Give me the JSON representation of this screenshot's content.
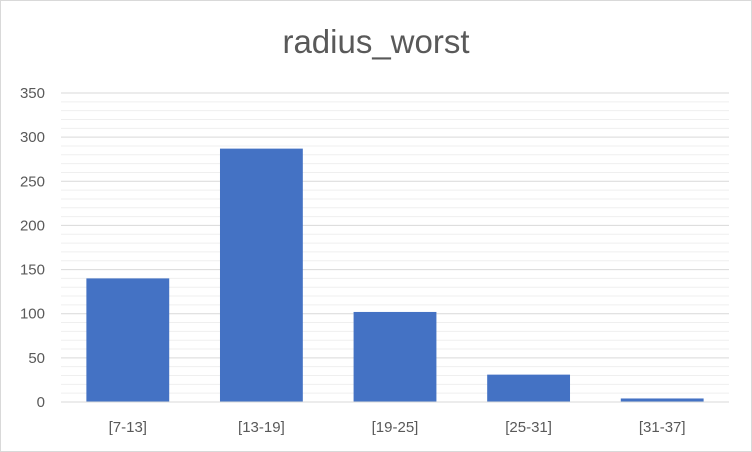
{
  "chart_data": {
    "type": "bar",
    "title": "radius_worst",
    "xlabel": "",
    "ylabel": "",
    "categories": [
      "[7-13]",
      "[13-19]",
      "[19-25]",
      "[25-31]",
      "[31-37]"
    ],
    "values": [
      140,
      287,
      102,
      31,
      4
    ],
    "ylim": [
      0,
      350
    ],
    "yticks": [
      0,
      50,
      100,
      150,
      200,
      250,
      300,
      350
    ],
    "grid": true,
    "legend": "none",
    "bar_color": "#4472C4",
    "grid_color": "#d9d9d9"
  }
}
